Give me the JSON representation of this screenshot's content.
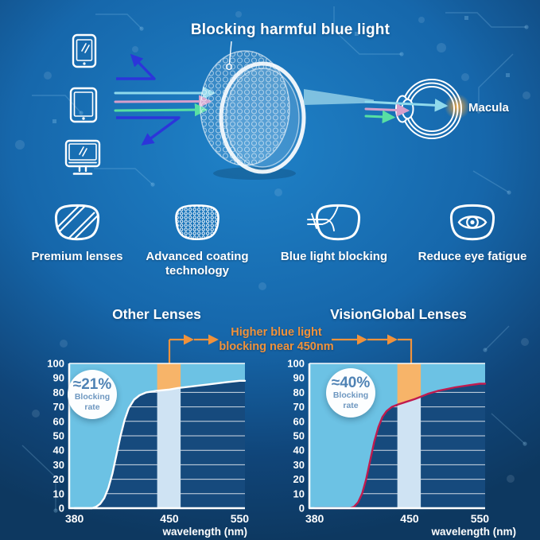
{
  "page": {
    "background": {
      "top": "#1468ac",
      "center": "#1f82c8",
      "bottom": "#0d3860"
    },
    "accent_orange": "#f0923b"
  },
  "hero": {
    "title": "Blocking harmful blue light",
    "macula_label": "Macula",
    "device_icons": [
      "smartphone-icon",
      "tablet-icon",
      "monitor-icon"
    ],
    "ray_colors": {
      "reflected_blue": "#2c35da",
      "cyan": "#8fd9ec",
      "pink": "#d79fcb",
      "green": "#58dfa3"
    },
    "macula_glow_color": "#f5a83d"
  },
  "features": [
    {
      "icon": "premium-lens-icon",
      "lines": [
        "Premium lenses"
      ]
    },
    {
      "icon": "coating-mesh-lens-icon",
      "lines": [
        "Advanced coating",
        "technology"
      ]
    },
    {
      "icon": "blue-light-blocking-lens-icon",
      "lines": [
        "Blue light blocking"
      ]
    },
    {
      "icon": "reduce-eye-fatigue-lens-icon",
      "lines": [
        "Reduce eye fatigue"
      ]
    }
  ],
  "comparison": {
    "annotation": {
      "line1": "Higher blue light",
      "line2": "blocking near 450nm",
      "color": "#f0923b"
    }
  },
  "chart_data": [
    {
      "type": "area",
      "title": "Other Lenses",
      "badge": {
        "value": "≈21%",
        "caption_line1": "Blocking",
        "caption_line2": "rate"
      },
      "xlabel": "wavelength (nm)",
      "x_ticks": [
        380,
        450,
        550
      ],
      "y_ticks": [
        0,
        10,
        20,
        30,
        40,
        50,
        60,
        70,
        80,
        90,
        100
      ],
      "ylim": [
        0,
        100
      ],
      "highlight_band_nm": [
        441,
        466
      ],
      "series": [
        {
          "name": "blocking curve",
          "points": [
            [
              380,
              0
            ],
            [
              393,
              0
            ],
            [
              396,
              1
            ],
            [
              399,
              3
            ],
            [
              402,
              7
            ],
            [
              405,
              14
            ],
            [
              408,
              24
            ],
            [
              411,
              37
            ],
            [
              414,
              50
            ],
            [
              417,
              61
            ],
            [
              420,
              69
            ],
            [
              424,
              75
            ],
            [
              428,
              78
            ],
            [
              433,
              80
            ],
            [
              440,
              81
            ],
            [
              450,
              82
            ],
            [
              462,
              83
            ],
            [
              480,
              84
            ],
            [
              505,
              85.5
            ],
            [
              530,
              87
            ],
            [
              550,
              88
            ]
          ]
        }
      ],
      "colors": {
        "curve": "#ffffff",
        "area_above": "#6cc2e4",
        "band": "#cfe3f3",
        "band_highlight": "#f7b469",
        "plot_bg": "#164a7d",
        "grid": "#ffffff"
      }
    },
    {
      "type": "area",
      "title": "VisionGlobal Lenses",
      "badge": {
        "value": "≈40%",
        "caption_line1": "Blocking",
        "caption_line2": "rate"
      },
      "xlabel": "wavelength (nm)",
      "x_ticks": [
        380,
        450,
        550
      ],
      "y_ticks": [
        0,
        10,
        20,
        30,
        40,
        50,
        60,
        70,
        80,
        90,
        100
      ],
      "ylim": [
        0,
        100
      ],
      "highlight_band_nm": [
        441,
        466
      ],
      "series": [
        {
          "name": "blocking curve",
          "points": [
            [
              380,
              0
            ],
            [
              406,
              0
            ],
            [
              409,
              1
            ],
            [
              412,
              4
            ],
            [
              415,
              10
            ],
            [
              418,
              20
            ],
            [
              421,
              33
            ],
            [
              424,
              46
            ],
            [
              427,
              56
            ],
            [
              430,
              63
            ],
            [
              433,
              67
            ],
            [
              437,
              70
            ],
            [
              441,
              71.5
            ],
            [
              446,
              73
            ],
            [
              452,
              74.5
            ],
            [
              458,
              75.5
            ],
            [
              466,
              77
            ],
            [
              476,
              79
            ],
            [
              490,
              81
            ],
            [
              515,
              83.5
            ],
            [
              535,
              85
            ],
            [
              550,
              86
            ]
          ]
        }
      ],
      "colors": {
        "curve": "#c01a4e",
        "area_above": "#6cc2e4",
        "band": "#cfe3f3",
        "band_highlight": "#f7b469",
        "plot_bg": "#164a7d",
        "grid": "#ffffff"
      }
    }
  ]
}
